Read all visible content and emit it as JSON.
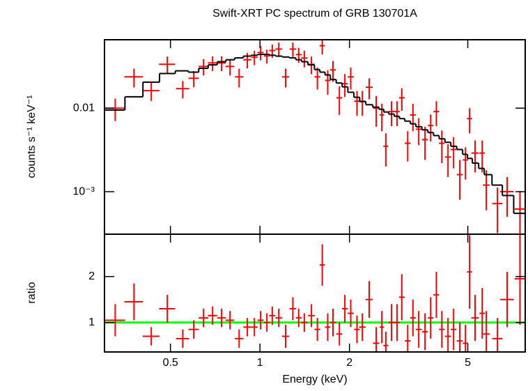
{
  "chart_data": [
    {
      "type": "scatter",
      "title": "Swift-XRT PC spectrum of GRB 130701A",
      "ylabel": "counts s⁻¹ keV⁻¹",
      "xscale": "log",
      "yscale": "log",
      "xlim": [
        0.3,
        7.8
      ],
      "ylim": [
        0.00031,
        0.066
      ],
      "yticks": [
        0.01,
        {
          "value": 0.001,
          "label": "10⁻³"
        }
      ],
      "series": [
        {
          "color": "#ff0000",
          "style": "errorbar",
          "x": [
            0.326,
            0.377,
            0.431,
            0.488,
            0.55,
            0.599,
            0.646,
            0.693,
            0.743,
            0.793,
            0.851,
            0.907,
            0.958,
            1.005,
            1.055,
            1.1,
            1.157,
            1.22,
            1.29,
            1.35,
            1.41,
            1.49,
            1.56,
            1.62,
            1.69,
            1.76,
            1.85,
            1.93,
            2.02,
            2.12,
            2.21,
            2.33,
            2.46,
            2.57,
            2.65,
            2.77,
            2.89,
            3.0,
            3.14,
            3.27,
            3.42,
            3.59,
            3.75,
            3.92,
            4.09,
            4.29,
            4.48,
            4.7,
            4.91,
            5.07,
            5.29,
            5.59,
            5.77,
            6.29,
            6.78,
            7.49
          ],
          "xerr": [
            0.026,
            0.027,
            0.028,
            0.03,
            0.028,
            0.024,
            0.024,
            0.025,
            0.025,
            0.027,
            0.028,
            0.028,
            0.024,
            0.024,
            0.024,
            0.026,
            0.03,
            0.033,
            0.032,
            0.03,
            0.035,
            0.038,
            0.035,
            0.033,
            0.035,
            0.04,
            0.042,
            0.042,
            0.048,
            0.046,
            0.055,
            0.062,
            0.06,
            0.045,
            0.05,
            0.06,
            0.06,
            0.065,
            0.07,
            0.07,
            0.08,
            0.08,
            0.08,
            0.085,
            0.09,
            0.1,
            0.1,
            0.11,
            0.1,
            0.1,
            0.15,
            0.12,
            0.15,
            0.25,
            0.35,
            0.3
          ],
          "values": [
            0.01,
            0.0237,
            0.0162,
            0.0335,
            0.0171,
            0.0228,
            0.0316,
            0.0348,
            0.0348,
            0.0316,
            0.0237,
            0.038,
            0.0407,
            0.0464,
            0.0422,
            0.049,
            0.051,
            0.0237,
            0.051,
            0.0438,
            0.0398,
            0.0335,
            0.0237,
            0.056,
            0.0215,
            0.0287,
            0.0133,
            0.0196,
            0.0237,
            0.0121,
            0.0121,
            0.0178,
            0.01,
            0.0083,
            0.0035,
            0.0091,
            0.0091,
            0.0133,
            0.0038,
            0.0083,
            0.0056,
            0.0042,
            0.0062,
            0.0091,
            0.0038,
            0.0026,
            0.0032,
            0.0016,
            0.0024,
            0.0075,
            0.0029,
            0.0029,
            0.0012,
            0.00072,
            0.001,
            0.00062
          ],
          "yerr": [
            0.003,
            0.006,
            0.004,
            0.008,
            0.004,
            0.005,
            0.007,
            0.007,
            0.007,
            0.007,
            0.006,
            0.008,
            0.008,
            0.009,
            0.008,
            0.009,
            0.01,
            0.006,
            0.01,
            0.009,
            0.009,
            0.008,
            0.007,
            0.012,
            0.007,
            0.008,
            0.005,
            0.006,
            0.007,
            0.004,
            0.004,
            0.005,
            0.004,
            0.003,
            0.0015,
            0.003,
            0.003,
            0.004,
            0.0015,
            0.003,
            0.002,
            0.0018,
            0.0022,
            0.003,
            0.0016,
            0.0011,
            0.0013,
            0.0008,
            0.001,
            0.0025,
            0.0012,
            0.0012,
            0.0006,
            0.0004,
            0.0005,
            0.0004
          ]
        },
        {
          "color": "#000000",
          "style": "step",
          "x": [
            0.326,
            0.377,
            0.431,
            0.488,
            0.55,
            0.599,
            0.646,
            0.693,
            0.743,
            0.793,
            0.851,
            0.907,
            0.958,
            1.005,
            1.055,
            1.1,
            1.157,
            1.22,
            1.29,
            1.35,
            1.41,
            1.49,
            1.56,
            1.62,
            1.69,
            1.76,
            1.85,
            1.93,
            2.02,
            2.12,
            2.21,
            2.33,
            2.46,
            2.57,
            2.65,
            2.77,
            2.89,
            3.0,
            3.14,
            3.27,
            3.42,
            3.59,
            3.75,
            3.92,
            4.09,
            4.29,
            4.48,
            4.7,
            4.91,
            5.07,
            5.29,
            5.59,
            5.77,
            6.29,
            6.78,
            7.49
          ],
          "values": [
            0.0095,
            0.0137,
            0.0205,
            0.026,
            0.028,
            0.027,
            0.03,
            0.033,
            0.036,
            0.038,
            0.04,
            0.042,
            0.043,
            0.044,
            0.044,
            0.043,
            0.042,
            0.041,
            0.04,
            0.038,
            0.036,
            0.033,
            0.029,
            0.027,
            0.025,
            0.022,
            0.02,
            0.018,
            0.0155,
            0.0135,
            0.012,
            0.011,
            0.0103,
            0.0097,
            0.009,
            0.0085,
            0.008,
            0.0075,
            0.007,
            0.0065,
            0.006,
            0.0055,
            0.0051,
            0.0047,
            0.0043,
            0.0039,
            0.0035,
            0.0032,
            0.0028,
            0.0025,
            0.0022,
            0.0019,
            0.0016,
            0.0012,
            0.0009,
            0.00055
          ]
        }
      ]
    },
    {
      "type": "scatter",
      "ylabel": "ratio",
      "xlabel": "Energy (keV)",
      "xscale": "log",
      "xlim": [
        0.3,
        7.8
      ],
      "ylim": [
        0.36,
        2.92
      ],
      "xticks": [
        0.5,
        1,
        2,
        5
      ],
      "yticks": [
        1,
        2
      ],
      "reference_line": 1,
      "reference_color": "#00ff00",
      "series": [
        {
          "color": "#ff0000",
          "style": "errorbar",
          "x": [
            0.326,
            0.377,
            0.431,
            0.488,
            0.55,
            0.599,
            0.646,
            0.693,
            0.743,
            0.793,
            0.851,
            0.907,
            0.958,
            1.005,
            1.055,
            1.1,
            1.157,
            1.22,
            1.29,
            1.35,
            1.41,
            1.49,
            1.56,
            1.62,
            1.69,
            1.76,
            1.85,
            1.93,
            2.02,
            2.12,
            2.21,
            2.33,
            2.46,
            2.57,
            2.65,
            2.77,
            2.89,
            3.0,
            3.14,
            3.27,
            3.42,
            3.59,
            3.75,
            3.92,
            4.09,
            4.29,
            4.48,
            4.7,
            4.91,
            5.07,
            5.29,
            5.59,
            5.77,
            6.29,
            6.78,
            7.49
          ],
          "xerr": [
            0.026,
            0.027,
            0.028,
            0.03,
            0.028,
            0.024,
            0.024,
            0.025,
            0.025,
            0.027,
            0.028,
            0.028,
            0.024,
            0.024,
            0.024,
            0.026,
            0.03,
            0.033,
            0.032,
            0.03,
            0.035,
            0.038,
            0.035,
            0.033,
            0.035,
            0.04,
            0.042,
            0.042,
            0.048,
            0.046,
            0.055,
            0.062,
            0.06,
            0.045,
            0.05,
            0.06,
            0.06,
            0.065,
            0.07,
            0.07,
            0.08,
            0.08,
            0.08,
            0.085,
            0.09,
            0.1,
            0.1,
            0.11,
            0.1,
            0.1,
            0.15,
            0.12,
            0.15,
            0.25,
            0.35,
            0.3
          ],
          "values": [
            1.05,
            1.45,
            0.7,
            1.3,
            0.65,
            0.85,
            1.1,
            1.15,
            1.1,
            1.05,
            0.65,
            0.9,
            0.9,
            1.05,
            1.0,
            1.15,
            1.1,
            0.7,
            1.3,
            1.1,
            1.0,
            1.15,
            0.85,
            2.25,
            0.9,
            1.0,
            0.75,
            1.3,
            1.2,
            0.85,
            0.9,
            1.5,
            0.55,
            0.9,
            0.5,
            1.0,
            1.0,
            1.55,
            0.6,
            1.1,
            0.85,
            0.8,
            1.1,
            1.6,
            0.85,
            0.7,
            0.85,
            0.6,
            0.55,
            2.1,
            1.1,
            1.2,
            0.75,
            0.65,
            1.5,
            1.95
          ],
          "yerr": [
            0.35,
            0.4,
            0.2,
            0.3,
            0.2,
            0.2,
            0.2,
            0.2,
            0.2,
            0.2,
            0.2,
            0.2,
            0.2,
            0.2,
            0.2,
            0.2,
            0.2,
            0.25,
            0.25,
            0.2,
            0.2,
            0.25,
            0.25,
            0.45,
            0.3,
            0.3,
            0.25,
            0.3,
            0.3,
            0.3,
            0.3,
            0.4,
            0.35,
            0.35,
            0.3,
            0.4,
            0.4,
            0.5,
            0.35,
            0.4,
            0.4,
            0.4,
            0.45,
            0.5,
            0.4,
            0.4,
            0.45,
            0.4,
            0.4,
            0.8,
            0.5,
            0.55,
            0.5,
            0.45,
            0.6,
            1.0
          ]
        }
      ]
    }
  ]
}
